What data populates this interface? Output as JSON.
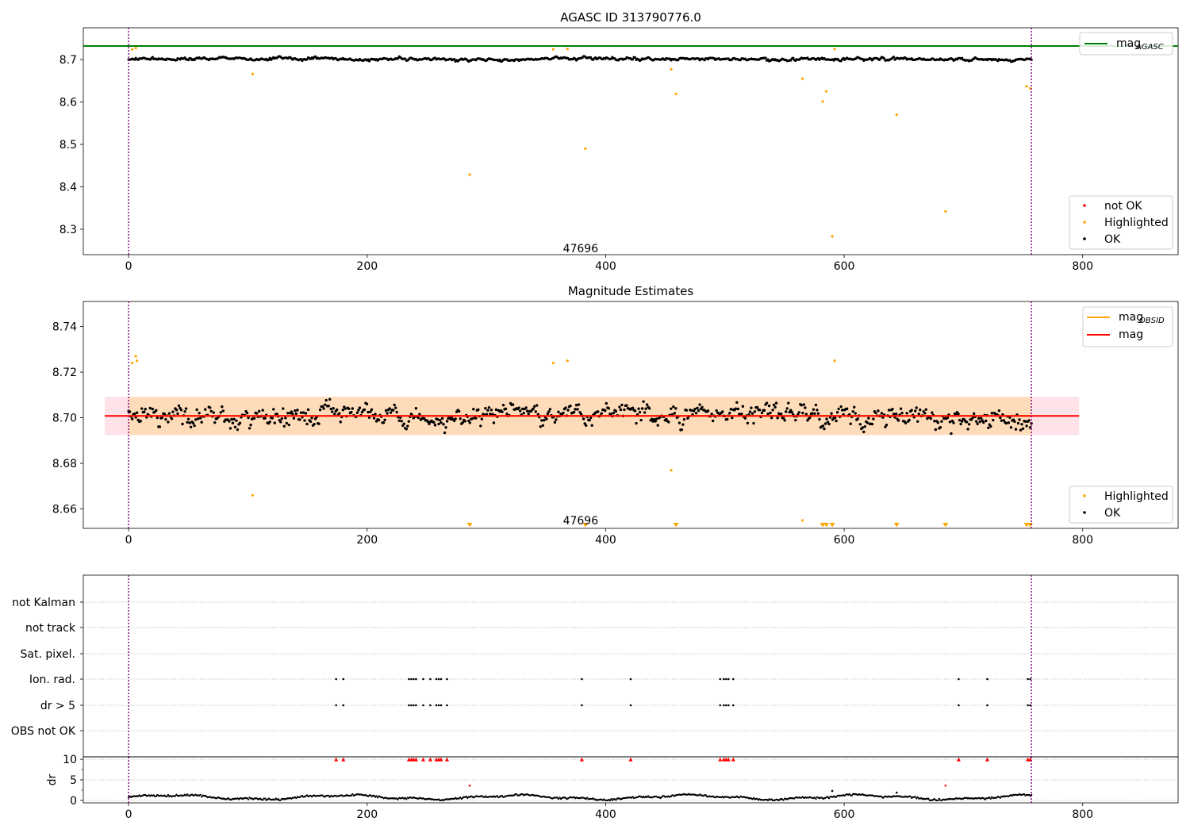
{
  "chart_data": [
    {
      "type": "scatter",
      "title": "AGASC ID 313790776.0",
      "xlabel": "",
      "ylabel": "",
      "xlim": [
        -38,
        880
      ],
      "ylim": [
        8.24,
        8.775
      ],
      "xticks": [
        0,
        200,
        400,
        600,
        800
      ],
      "yticks": [
        8.3,
        8.4,
        8.5,
        8.6,
        8.7
      ],
      "ytick_labels": [
        "8.3",
        "8.4",
        "8.5",
        "8.6",
        "8.7"
      ],
      "grid": false,
      "obsid_label": {
        "text": "47696",
        "x": 379,
        "y": 8.255
      },
      "vlines": [
        0,
        757
      ],
      "hline": {
        "name": "mag_AGASC",
        "value": 8.732,
        "color": "#008000"
      },
      "legend_lines": {
        "placement": "top-right",
        "entries": [
          {
            "label": "mag",
            "sub": "AGASC",
            "color": "#008000"
          }
        ]
      },
      "legend_points": {
        "placement": "bottom-right",
        "entries": [
          {
            "label": "not OK",
            "color": "#ff0000"
          },
          {
            "label": "Highlighted",
            "color": "#ffa500"
          },
          {
            "label": "OK",
            "color": "#000000"
          }
        ]
      },
      "ok_points": {
        "n": 755,
        "x_start": 0,
        "x_end": 757,
        "center": 8.701,
        "spread": 0.006,
        "color": "#000000"
      },
      "highlighted_points": [
        {
          "x": 3,
          "y": 8.724
        },
        {
          "x": 6,
          "y": 8.727
        },
        {
          "x": 104,
          "y": 8.666
        },
        {
          "x": 286,
          "y": 8.429
        },
        {
          "x": 356,
          "y": 8.724
        },
        {
          "x": 368,
          "y": 8.725
        },
        {
          "x": 383,
          "y": 8.49
        },
        {
          "x": 455,
          "y": 8.677
        },
        {
          "x": 459,
          "y": 8.619
        },
        {
          "x": 565,
          "y": 8.655
        },
        {
          "x": 582,
          "y": 8.601
        },
        {
          "x": 585,
          "y": 8.625
        },
        {
          "x": 590,
          "y": 8.283
        },
        {
          "x": 592,
          "y": 8.725
        },
        {
          "x": 644,
          "y": 8.57
        },
        {
          "x": 685,
          "y": 8.342
        },
        {
          "x": 753,
          "y": 8.637
        },
        {
          "x": 756,
          "y": 8.632
        }
      ]
    },
    {
      "type": "scatter",
      "title": "Magnitude Estimates",
      "xlabel": "",
      "ylabel": "",
      "xlim": [
        -38,
        880
      ],
      "ylim": [
        8.6515,
        8.751
      ],
      "xticks": [
        0,
        200,
        400,
        600,
        800
      ],
      "yticks": [
        8.66,
        8.68,
        8.7,
        8.72,
        8.74
      ],
      "ytick_labels": [
        "8.66",
        "8.68",
        "8.70",
        "8.72",
        "8.74"
      ],
      "grid": false,
      "obsid_label": {
        "text": "47696",
        "x": 379,
        "y": 8.655
      },
      "vlines": [
        0,
        757
      ],
      "mag_line": {
        "name": "mag",
        "value": 8.7008,
        "x_range": [
          -20,
          797
        ],
        "color": "#ff0000"
      },
      "obsid_mag_line": {
        "name": "mag_OBSID",
        "value": 8.7008,
        "x_range": [
          0,
          757
        ],
        "color": "#ffa500"
      },
      "bands": [
        {
          "x_range": [
            -20,
            797
          ],
          "y_range": [
            8.6924,
            8.7092
          ],
          "color": "#ffc0cb"
        },
        {
          "x_range": [
            0,
            757
          ],
          "y_range": [
            8.6924,
            8.7092
          ],
          "color": "#ffdab0"
        }
      ],
      "legend_lines": {
        "placement": "top-right",
        "entries": [
          {
            "label": "mag",
            "sub": "OBSID",
            "color": "#ffa500"
          },
          {
            "label": "mag",
            "sub": "",
            "color": "#ff0000"
          }
        ]
      },
      "legend_points": {
        "placement": "bottom-right",
        "entries": [
          {
            "label": "Highlighted",
            "color": "#ffa500"
          },
          {
            "label": "OK",
            "color": "#000000"
          }
        ]
      },
      "ok_points": {
        "n": 755,
        "x_start": 0,
        "x_end": 757,
        "center": 8.701,
        "spread": 0.0075,
        "color": "#000000"
      },
      "highlighted_points": [
        {
          "x": 3,
          "y": 8.724
        },
        {
          "x": 6,
          "y": 8.727
        },
        {
          "x": 7,
          "y": 8.725
        },
        {
          "x": 104,
          "y": 8.666
        },
        {
          "x": 356,
          "y": 8.724
        },
        {
          "x": 368,
          "y": 8.725
        },
        {
          "x": 455,
          "y": 8.677
        },
        {
          "x": 565,
          "y": 8.655
        },
        {
          "x": 592,
          "y": 8.725
        }
      ],
      "clipped_markers": [
        286,
        383,
        459,
        582,
        585,
        590,
        644,
        685,
        753,
        756
      ]
    },
    {
      "type": "scatter",
      "title": "",
      "xlabel": "",
      "ylabel": "",
      "xlim": [
        -38,
        880
      ],
      "grid": true,
      "vlines": [
        0,
        757
      ],
      "flag_rows": [
        "not Kalman",
        "not track",
        "Sat. pixel.",
        "Ion. rad.",
        "dr > 5",
        "OBS not OK"
      ],
      "flag_x": [
        174,
        180,
        235,
        237,
        239,
        241,
        247,
        253,
        258,
        260,
        262,
        267,
        380,
        421,
        496,
        499,
        501,
        503,
        507,
        696,
        720,
        754,
        756
      ],
      "flag_color": "#000000"
    },
    {
      "type": "scatter",
      "title": "",
      "xlabel": "",
      "ylabel": "dr",
      "xlim": [
        -38,
        880
      ],
      "ylim": [
        -0.6,
        10.6
      ],
      "xticks": [
        0,
        200,
        400,
        600,
        800
      ],
      "yticks": [
        0,
        5,
        10
      ],
      "ytick_labels": [
        "0",
        "5",
        "10"
      ],
      "grid": true,
      "vlines": [
        0,
        757
      ],
      "dr_points": {
        "n": 755,
        "x_start": 0,
        "x_end": 757,
        "color": "#000000"
      },
      "dr_outliers": [
        {
          "x": 286,
          "y": 3.6
        },
        {
          "x": 685,
          "y": 3.6
        },
        {
          "x": 590,
          "y": 2.3
        },
        {
          "x": 644,
          "y": 1.9
        }
      ],
      "clipped_markers": [
        174,
        180,
        235,
        237,
        239,
        241,
        247,
        253,
        258,
        260,
        262,
        267,
        380,
        421,
        496,
        499,
        501,
        503,
        507,
        696,
        720,
        754,
        756
      ],
      "clipped_color": "#ff0000"
    }
  ]
}
